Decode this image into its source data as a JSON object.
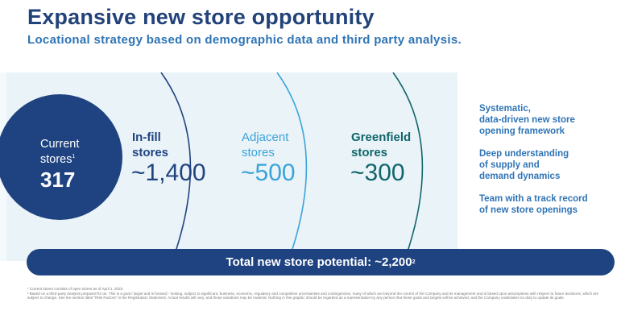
{
  "header": {
    "title": "Expansive new store opportunity",
    "subtitle": "Locational strategy based on demographic data and third party analysis."
  },
  "colors": {
    "navy": "#1f4380",
    "dark_teal": "#10666b",
    "light_blue": "#3aa3da",
    "panel": "#eaf3f8",
    "text_blue": "#2f74b5"
  },
  "current": {
    "label_line1": "Current",
    "label_line2": "stores",
    "footnote_mark": "1",
    "value": "317"
  },
  "segments": [
    {
      "label_line1": "In-fill",
      "label_line2": "stores",
      "value": "~1,400"
    },
    {
      "label_line1": "Adjacent",
      "label_line2": "stores",
      "value": "~500"
    },
    {
      "label_line1": "Greenfield",
      "label_line2": "stores",
      "value": "~300"
    }
  ],
  "highlights": [
    "Systematic,\ndata-driven new store\nopening framework",
    "Deep understanding\nof supply and\ndemand dynamics",
    "Team with a track record\nof new store openings"
  ],
  "total": {
    "text": "Total new store potential: ~2,200",
    "footnote_mark": "2"
  },
  "footnotes": [
    "¹ Current stores consists of open stores as of April 1, 2023.",
    "² Based on a third-party analysis prepared for us. This is a goal / target and is forward - looking, subject to significant, business, economic, regulatory and competitive uncertainties and contingencies, many of which are beyond the control of the Company and its management and is based upon assumptions with respect to future decisions, which are subject to change. See the section titled \"Risk Factors\" in the Registration Statement. Actual results will vary, and those variations may be material. Nothing in this graphic should be regarded as a representation by any person that these goals and targets will be achieved, and the Company undertakes no duty to update its goals."
  ]
}
